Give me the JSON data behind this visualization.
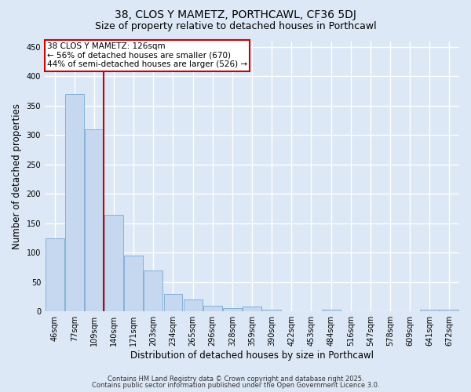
{
  "title1": "38, CLOS Y MAMETZ, PORTHCAWL, CF36 5DJ",
  "title2": "Size of property relative to detached houses in Porthcawl",
  "xlabel": "Distribution of detached houses by size in Porthcawl",
  "ylabel": "Number of detached properties",
  "categories": [
    "46sqm",
    "77sqm",
    "109sqm",
    "140sqm",
    "171sqm",
    "203sqm",
    "234sqm",
    "265sqm",
    "296sqm",
    "328sqm",
    "359sqm",
    "390sqm",
    "422sqm",
    "453sqm",
    "484sqm",
    "516sqm",
    "547sqm",
    "578sqm",
    "609sqm",
    "641sqm",
    "672sqm"
  ],
  "values": [
    125,
    370,
    310,
    165,
    95,
    70,
    30,
    20,
    10,
    6,
    8,
    3,
    0,
    0,
    3,
    0,
    0,
    0,
    0,
    3,
    3
  ],
  "bar_color": "#c5d8f0",
  "bar_edge_color": "#7aaad4",
  "vline_x": 2.5,
  "vline_color": "#cc0000",
  "annotation_text": "38 CLOS Y MAMETZ: 126sqm\n← 56% of detached houses are smaller (670)\n44% of semi-detached houses are larger (526) →",
  "annotation_box_color": "#ffffff",
  "annotation_box_edge": "#cc0000",
  "ylim": [
    0,
    460
  ],
  "yticks": [
    0,
    50,
    100,
    150,
    200,
    250,
    300,
    350,
    400,
    450
  ],
  "footer1": "Contains HM Land Registry data © Crown copyright and database right 2025.",
  "footer2": "Contains public sector information published under the Open Government Licence 3.0.",
  "bg_color": "#dce8f5",
  "grid_color": "#ffffff",
  "title_fontsize": 10,
  "subtitle_fontsize": 9,
  "tick_fontsize": 7,
  "label_fontsize": 8.5,
  "footer_fontsize": 6,
  "annotation_fontsize": 7.5
}
